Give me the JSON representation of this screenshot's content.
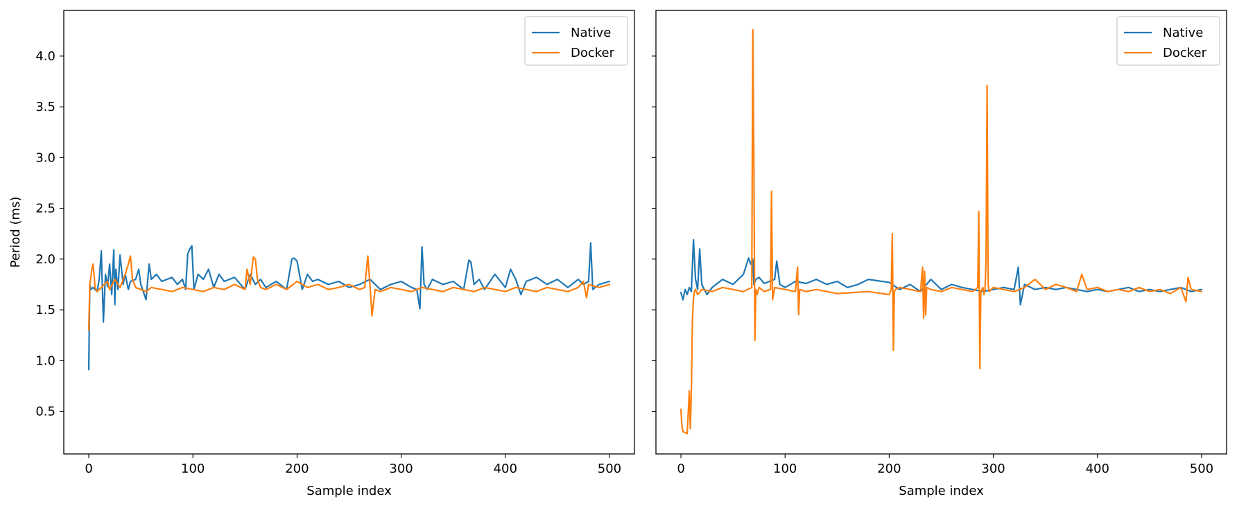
{
  "colors": {
    "native": "#1f77b4",
    "docker": "#ff7f0e"
  },
  "chart_data": [
    {
      "type": "line",
      "title": "",
      "xlabel": "Sample index",
      "ylabel": "Period (ms)",
      "xlim": [
        -24,
        524
      ],
      "ylim": [
        0.08,
        4.45
      ],
      "xticks": [
        0,
        100,
        200,
        300,
        400,
        500
      ],
      "yticks": [
        0.5,
        1.0,
        1.5,
        2.0,
        2.5,
        3.0,
        3.5,
        4.0
      ],
      "ytick_labels": [
        "0.5",
        "1.0",
        "1.5",
        "2.0",
        "2.5",
        "3.0",
        "3.5",
        "4.0"
      ],
      "show_yticklabels": true,
      "legend": "top-right",
      "series": [
        {
          "name": "Native",
          "color": "#1f77b4",
          "x": [
            0,
            1,
            2,
            4,
            8,
            10,
            12,
            14,
            16,
            18,
            20,
            22,
            24,
            25,
            26,
            28,
            30,
            33,
            35,
            38,
            40,
            45,
            48,
            50,
            55,
            58,
            60,
            65,
            70,
            75,
            80,
            85,
            90,
            93,
            95,
            97,
            99,
            101,
            105,
            110,
            115,
            120,
            125,
            130,
            140,
            150,
            155,
            160,
            165,
            170,
            180,
            190,
            195,
            197,
            200,
            205,
            210,
            215,
            220,
            230,
            240,
            250,
            260,
            270,
            280,
            290,
            300,
            310,
            315,
            318,
            320,
            322,
            325,
            330,
            340,
            350,
            360,
            365,
            367,
            370,
            375,
            380,
            390,
            400,
            405,
            410,
            415,
            420,
            430,
            440,
            450,
            460,
            470,
            475,
            480,
            482,
            484,
            490,
            500
          ],
          "y": [
            0.91,
            1.75,
            1.7,
            1.72,
            1.68,
            1.8,
            2.08,
            1.38,
            1.85,
            1.73,
            1.95,
            1.65,
            2.09,
            1.55,
            1.9,
            1.7,
            2.04,
            1.75,
            1.85,
            1.7,
            1.78,
            1.8,
            1.9,
            1.75,
            1.6,
            1.95,
            1.8,
            1.85,
            1.78,
            1.8,
            1.82,
            1.75,
            1.8,
            1.7,
            2.05,
            2.1,
            2.13,
            1.7,
            1.85,
            1.8,
            1.9,
            1.72,
            1.85,
            1.78,
            1.82,
            1.7,
            1.85,
            1.75,
            1.8,
            1.72,
            1.78,
            1.7,
            2.0,
            2.01,
            1.98,
            1.7,
            1.85,
            1.78,
            1.8,
            1.75,
            1.78,
            1.72,
            1.75,
            1.8,
            1.7,
            1.75,
            1.78,
            1.72,
            1.7,
            1.51,
            2.12,
            1.75,
            1.7,
            1.8,
            1.75,
            1.78,
            1.7,
            1.99,
            1.97,
            1.75,
            1.8,
            1.7,
            1.85,
            1.72,
            1.9,
            1.8,
            1.65,
            1.78,
            1.82,
            1.75,
            1.8,
            1.72,
            1.8,
            1.75,
            1.78,
            2.16,
            1.7,
            1.75,
            1.78
          ]
        },
        {
          "name": "Docker",
          "color": "#ff7f0e",
          "x": [
            0,
            1,
            2,
            3,
            4,
            5,
            6,
            8,
            10,
            12,
            15,
            18,
            20,
            25,
            30,
            35,
            38,
            40,
            42,
            45,
            50,
            55,
            60,
            70,
            80,
            90,
            100,
            110,
            120,
            130,
            140,
            150,
            152,
            155,
            158,
            160,
            162,
            165,
            170,
            180,
            190,
            200,
            210,
            220,
            230,
            240,
            250,
            260,
            265,
            268,
            270,
            272,
            275,
            280,
            290,
            300,
            310,
            320,
            330,
            340,
            350,
            360,
            370,
            380,
            390,
            400,
            410,
            420,
            430,
            440,
            450,
            460,
            470,
            475,
            478,
            480,
            490,
            500
          ],
          "y": [
            1.3,
            1.75,
            1.82,
            1.9,
            1.95,
            1.85,
            1.72,
            1.68,
            1.7,
            1.72,
            1.75,
            1.78,
            1.7,
            1.8,
            1.72,
            1.85,
            1.95,
            2.03,
            1.8,
            1.72,
            1.7,
            1.68,
            1.72,
            1.7,
            1.68,
            1.72,
            1.7,
            1.68,
            1.72,
            1.7,
            1.75,
            1.7,
            1.9,
            1.75,
            2.02,
            2.0,
            1.8,
            1.72,
            1.7,
            1.75,
            1.7,
            1.78,
            1.72,
            1.75,
            1.7,
            1.72,
            1.75,
            1.7,
            1.72,
            2.03,
            1.75,
            1.44,
            1.7,
            1.68,
            1.72,
            1.7,
            1.68,
            1.72,
            1.7,
            1.68,
            1.72,
            1.7,
            1.68,
            1.72,
            1.7,
            1.68,
            1.72,
            1.7,
            1.68,
            1.72,
            1.7,
            1.68,
            1.72,
            1.78,
            1.62,
            1.75,
            1.72,
            1.75
          ]
        }
      ]
    },
    {
      "type": "line",
      "title": "",
      "xlabel": "Sample index",
      "ylabel": "",
      "xlim": [
        -24,
        524
      ],
      "ylim": [
        0.08,
        4.45
      ],
      "xticks": [
        0,
        100,
        200,
        300,
        400,
        500
      ],
      "yticks": [
        0.5,
        1.0,
        1.5,
        2.0,
        2.5,
        3.0,
        3.5,
        4.0
      ],
      "ytick_labels": [],
      "show_yticklabels": false,
      "legend": "top-right",
      "series": [
        {
          "name": "Native",
          "color": "#1f77b4",
          "x": [
            0,
            2,
            4,
            6,
            8,
            10,
            12,
            14,
            16,
            18,
            20,
            25,
            30,
            40,
            50,
            60,
            65,
            67,
            69,
            70,
            72,
            75,
            80,
            85,
            90,
            92,
            95,
            100,
            110,
            120,
            130,
            140,
            150,
            160,
            170,
            180,
            200,
            210,
            220,
            230,
            240,
            250,
            260,
            270,
            280,
            290,
            300,
            310,
            320,
            324,
            326,
            330,
            340,
            350,
            360,
            370,
            380,
            390,
            400,
            410,
            420,
            430,
            440,
            450,
            460,
            470,
            480,
            490,
            500
          ],
          "y": [
            1.67,
            1.6,
            1.7,
            1.65,
            1.72,
            1.68,
            2.19,
            1.8,
            1.7,
            2.1,
            1.75,
            1.65,
            1.72,
            1.8,
            1.75,
            1.85,
            2.01,
            1.95,
            2.0,
            1.75,
            1.8,
            1.82,
            1.76,
            1.78,
            1.8,
            1.98,
            1.75,
            1.72,
            1.78,
            1.76,
            1.8,
            1.75,
            1.78,
            1.72,
            1.75,
            1.8,
            1.77,
            1.7,
            1.75,
            1.68,
            1.8,
            1.7,
            1.75,
            1.72,
            1.7,
            1.68,
            1.7,
            1.72,
            1.7,
            1.92,
            1.55,
            1.75,
            1.7,
            1.72,
            1.7,
            1.72,
            1.7,
            1.68,
            1.7,
            1.68,
            1.7,
            1.72,
            1.68,
            1.7,
            1.68,
            1.7,
            1.72,
            1.68,
            1.7
          ]
        },
        {
          "name": "Docker",
          "color": "#ff7f0e",
          "x": [
            0,
            1,
            2,
            4,
            6,
            8,
            9,
            10,
            11,
            12,
            13,
            14,
            16,
            20,
            30,
            40,
            50,
            60,
            68,
            69,
            70,
            71,
            72,
            73,
            75,
            80,
            86,
            87,
            88,
            90,
            100,
            110,
            112,
            113,
            114,
            120,
            130,
            150,
            180,
            200,
            202,
            203,
            204,
            205,
            206,
            210,
            220,
            230,
            232,
            233,
            234,
            235,
            236,
            240,
            250,
            260,
            270,
            280,
            285,
            286,
            287,
            288,
            290,
            291,
            292,
            293,
            294,
            295,
            296,
            300,
            310,
            320,
            330,
            340,
            350,
            360,
            370,
            380,
            385,
            390,
            400,
            410,
            420,
            430,
            440,
            450,
            460,
            470,
            480,
            485,
            487,
            490,
            500
          ],
          "y": [
            0.52,
            0.35,
            0.3,
            0.29,
            0.28,
            0.7,
            0.33,
            0.7,
            1.4,
            1.62,
            1.68,
            1.7,
            1.65,
            1.7,
            1.68,
            1.72,
            1.7,
            1.68,
            1.72,
            4.26,
            3.0,
            1.2,
            1.7,
            1.65,
            1.72,
            1.68,
            1.7,
            2.67,
            1.6,
            1.72,
            1.7,
            1.68,
            1.92,
            1.45,
            1.7,
            1.68,
            1.7,
            1.66,
            1.68,
            1.65,
            1.7,
            2.25,
            1.1,
            1.68,
            1.7,
            1.72,
            1.7,
            1.68,
            1.92,
            1.42,
            1.88,
            1.45,
            1.72,
            1.7,
            1.68,
            1.72,
            1.7,
            1.68,
            1.72,
            2.47,
            0.92,
            1.68,
            1.72,
            1.65,
            1.7,
            2.0,
            3.71,
            1.75,
            1.68,
            1.72,
            1.7,
            1.68,
            1.72,
            1.8,
            1.7,
            1.75,
            1.72,
            1.68,
            1.85,
            1.7,
            1.72,
            1.68,
            1.7,
            1.68,
            1.72,
            1.68,
            1.7,
            1.66,
            1.72,
            1.58,
            1.82,
            1.7,
            1.68
          ]
        }
      ]
    }
  ]
}
